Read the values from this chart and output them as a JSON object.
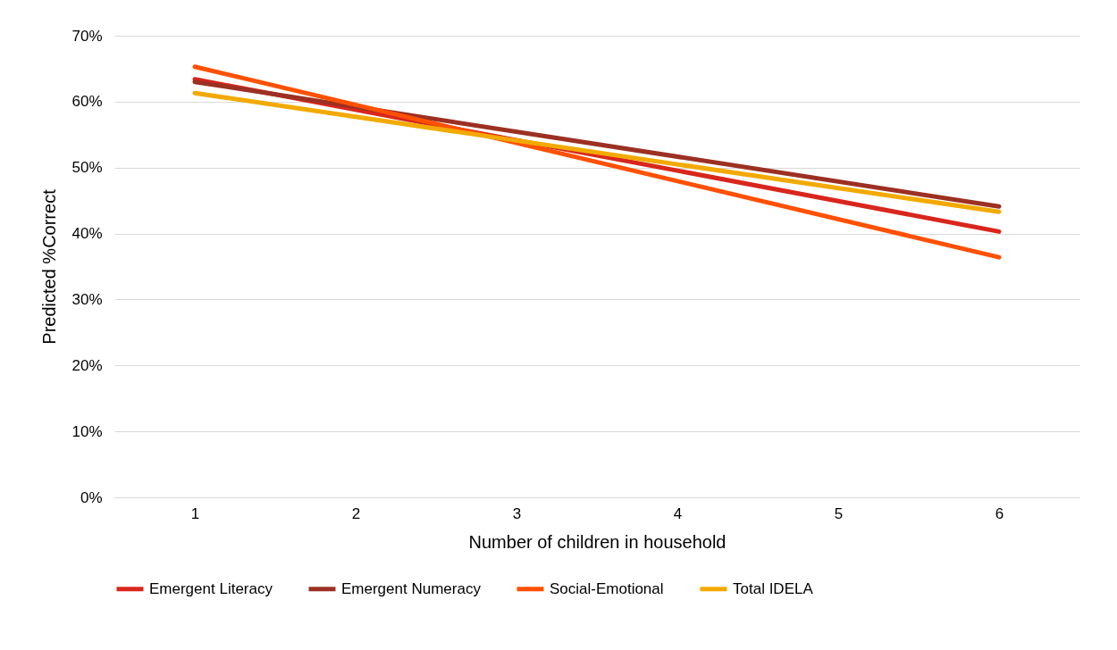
{
  "chart_data": {
    "type": "line",
    "xlabel": "Number of children in household",
    "ylabel": "Predicted %Correct",
    "x": [
      1,
      6
    ],
    "xlim": [
      0.5,
      6.5
    ],
    "xticks": [
      1,
      2,
      3,
      4,
      5,
      6
    ],
    "ylim": [
      0,
      70
    ],
    "yticks": [
      {
        "value": 0,
        "label": "0%"
      },
      {
        "value": 10,
        "label": "10%"
      },
      {
        "value": 20,
        "label": "20%"
      },
      {
        "value": 30,
        "label": "30%"
      },
      {
        "value": 40,
        "label": "40%"
      },
      {
        "value": 50,
        "label": "50%"
      },
      {
        "value": 60,
        "label": "60%"
      },
      {
        "value": 70,
        "label": "70%"
      }
    ],
    "grid": "y",
    "legend": "bottom",
    "line_style": "solid",
    "series": [
      {
        "name": "Emergent Literacy",
        "color": "#d9261c",
        "values": [
          63.4,
          40.3
        ]
      },
      {
        "name": "Emergent Numeracy",
        "color": "#9c3022",
        "values": [
          63.0,
          44.1
        ]
      },
      {
        "name": "Social-Emotional",
        "color": "#ff5000",
        "values": [
          65.3,
          36.4
        ]
      },
      {
        "name": "Total IDELA",
        "color": "#f2a900",
        "values": [
          61.3,
          43.3
        ]
      }
    ]
  }
}
